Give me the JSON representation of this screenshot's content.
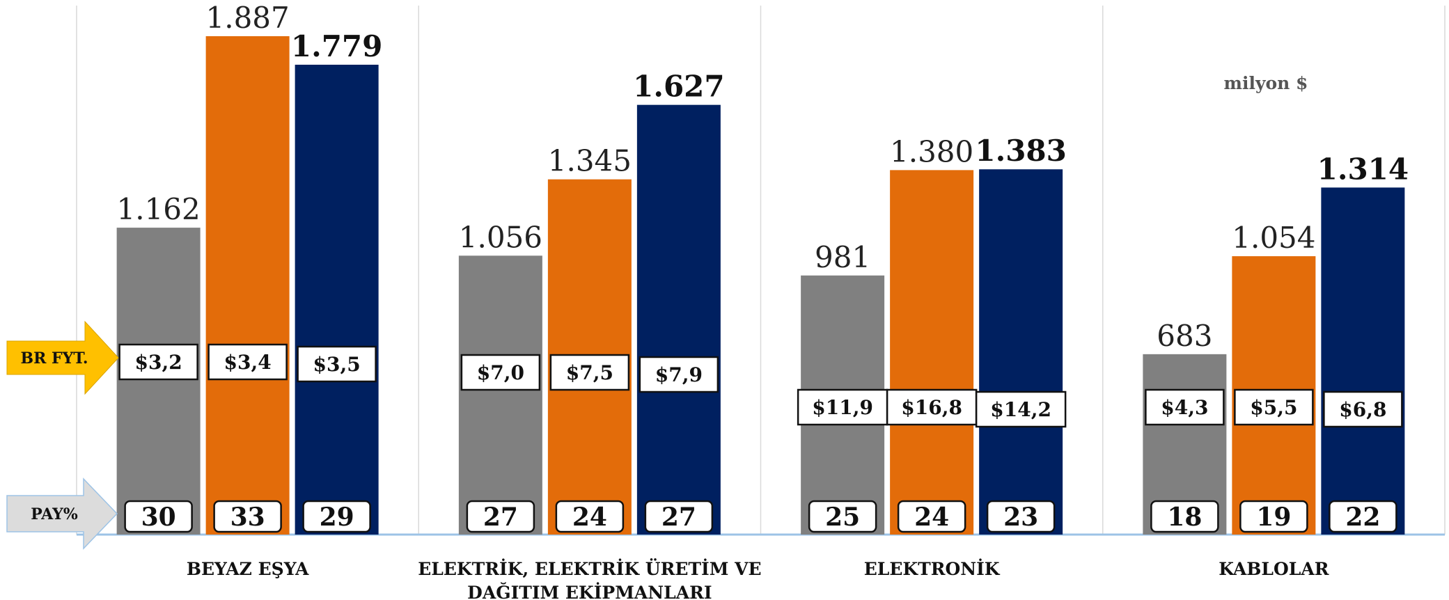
{
  "chart_data": {
    "type": "bar",
    "unit_label": "milyon $",
    "row_labels": {
      "price": "BR FYT.",
      "share": "PAY%"
    },
    "categories": [
      [
        "BEYAZ EŞYA"
      ],
      [
        "ELEKTRİK, ELEKTRİK ÜRETİM VE",
        "DAĞITIM EKİPMANLARI"
      ],
      [
        "ELEKTRONİK"
      ],
      [
        "KABLOLAR"
      ]
    ],
    "series": [
      {
        "color": "#808080",
        "values": [
          1162,
          1056,
          981,
          683
        ],
        "value_labels": [
          "1.162",
          "1.056",
          "981",
          "683"
        ],
        "bold": false,
        "unit_prices": [
          "$3,2",
          "$7,0",
          "$11,9",
          "$4,3"
        ],
        "shares": [
          "30",
          "27",
          "25",
          "18"
        ]
      },
      {
        "color": "#E36C0A",
        "values": [
          1887,
          1345,
          1380,
          1054
        ],
        "value_labels": [
          "1.887",
          "1.345",
          "1.380",
          "1.054"
        ],
        "bold": false,
        "unit_prices": [
          "$3,4",
          "$7,5",
          "$16,8",
          "$5,5"
        ],
        "shares": [
          "33",
          "24",
          "24",
          "19"
        ]
      },
      {
        "color": "#002060",
        "values": [
          1779,
          1627,
          1383,
          1314
        ],
        "value_labels": [
          "1.779",
          "1.627",
          "1.383",
          "1.314"
        ],
        "bold": true,
        "unit_prices": [
          "$3,5",
          "$7,9",
          "$14,2",
          "$6,8"
        ],
        "shares": [
          "29",
          "27",
          "23",
          "22"
        ]
      }
    ],
    "ylim": [
      0,
      1887
    ],
    "grid": false,
    "colors": {
      "price_arrow": "#FFC000",
      "share_arrow": "#DCDCDC",
      "baseline": "#9DC3E6",
      "separator": "#D9D9D9"
    }
  }
}
